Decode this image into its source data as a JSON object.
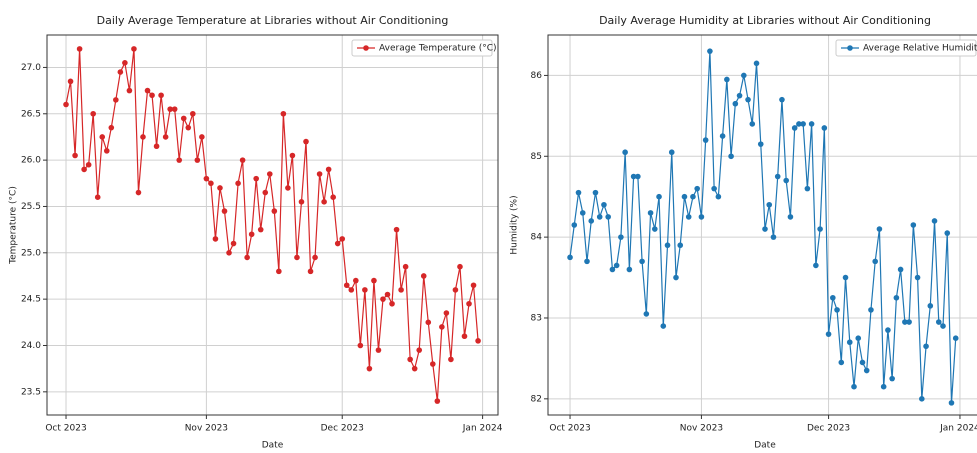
{
  "chart_data": [
    {
      "type": "line",
      "title": "Daily Average Temperature at Libraries without Air Conditioning",
      "xlabel": "Date",
      "ylabel": "Temperature (°C)",
      "x": [
        0,
        1,
        2,
        3,
        4,
        5,
        6,
        7,
        8,
        9,
        10,
        11,
        12,
        13,
        14,
        15,
        16,
        17,
        18,
        19,
        20,
        21,
        22,
        23,
        24,
        25,
        26,
        27,
        28,
        29,
        30,
        31,
        32,
        33,
        34,
        35,
        36,
        37,
        38,
        39,
        40,
        41,
        42,
        43,
        44,
        45,
        46,
        47,
        48,
        49,
        50,
        51,
        52,
        53,
        54,
        55,
        56,
        57,
        58,
        59,
        60,
        61,
        62,
        63,
        64,
        65,
        66,
        67,
        68,
        69,
        70,
        71,
        72,
        73,
        74,
        75,
        76,
        77,
        78,
        79,
        80,
        81,
        82,
        83,
        84,
        85,
        86,
        87,
        88,
        89,
        90,
        91
      ],
      "series": [
        {
          "name": "Average Temperature (°C)",
          "color": "#d62728",
          "values": [
            26.6,
            26.85,
            26.05,
            27.2,
            25.9,
            25.95,
            26.5,
            25.6,
            26.25,
            26.1,
            26.35,
            26.65,
            26.95,
            27.05,
            26.75,
            27.2,
            25.65,
            26.25,
            26.75,
            26.7,
            26.15,
            26.7,
            26.25,
            26.55,
            26.55,
            26.0,
            26.45,
            26.35,
            26.5,
            26.0,
            26.25,
            25.8,
            25.75,
            25.15,
            25.7,
            25.45,
            25.0,
            25.1,
            25.75,
            26.0,
            24.95,
            25.2,
            25.8,
            25.25,
            25.65,
            25.85,
            25.45,
            24.8,
            26.5,
            25.7,
            26.05,
            24.95,
            25.55,
            26.2,
            24.8,
            24.95,
            25.85,
            25.55,
            25.9,
            25.6,
            25.1,
            25.15,
            24.65,
            24.6,
            24.7,
            24.0,
            24.6,
            23.75,
            24.7,
            23.95,
            24.5,
            24.55,
            24.45,
            25.25,
            24.6,
            24.85,
            23.85,
            23.75,
            23.95,
            24.75,
            24.25,
            23.8,
            23.4,
            24.2,
            24.35,
            23.85,
            24.6,
            24.85,
            24.1,
            24.45,
            24.65,
            24.05
          ]
        }
      ],
      "xlim": [
        -4.2,
        95.4
      ],
      "xticks": [
        {
          "value": 0,
          "label": "Oct 2023"
        },
        {
          "value": 31,
          "label": "Nov 2023"
        },
        {
          "value": 61,
          "label": "Dec 2023"
        },
        {
          "value": 92,
          "label": "Jan 2024"
        }
      ],
      "ylim": [
        23.25,
        27.35
      ],
      "yticks": [
        23.5,
        {
          "value": 24,
          "label": "24.0"
        },
        24.5,
        {
          "value": 25,
          "label": "25.0"
        },
        25.5,
        {
          "value": 26,
          "label": "26.0"
        },
        26.5,
        {
          "value": 27,
          "label": "27.0"
        }
      ],
      "grid": true,
      "legend": "upper right"
    },
    {
      "type": "line",
      "title": "Daily Average Humidity at Libraries without Air Conditioning",
      "xlabel": "Date",
      "ylabel": "Humidity (%)",
      "x": [
        0,
        1,
        2,
        3,
        4,
        5,
        6,
        7,
        8,
        9,
        10,
        11,
        12,
        13,
        14,
        15,
        16,
        17,
        18,
        19,
        20,
        21,
        22,
        23,
        24,
        25,
        26,
        27,
        28,
        29,
        30,
        31,
        32,
        33,
        34,
        35,
        36,
        37,
        38,
        39,
        40,
        41,
        42,
        43,
        44,
        45,
        46,
        47,
        48,
        49,
        50,
        51,
        52,
        53,
        54,
        55,
        56,
        57,
        58,
        59,
        60,
        61,
        62,
        63,
        64,
        65,
        66,
        67,
        68,
        69,
        70,
        71,
        72,
        73,
        74,
        75,
        76,
        77,
        78,
        79,
        80,
        81,
        82,
        83,
        84,
        85,
        86,
        87,
        88,
        89,
        90,
        91
      ],
      "series": [
        {
          "name": "Average Relative Humidity (%)",
          "color": "#1f77b4",
          "values": [
            83.75,
            84.15,
            84.55,
            84.3,
            83.7,
            84.2,
            84.55,
            84.25,
            84.4,
            84.25,
            83.6,
            83.65,
            84.0,
            85.05,
            83.6,
            84.75,
            84.75,
            83.7,
            83.05,
            84.3,
            84.1,
            84.5,
            82.9,
            83.9,
            85.05,
            83.5,
            83.9,
            84.5,
            84.25,
            84.5,
            84.6,
            84.25,
            85.2,
            86.3,
            84.6,
            84.5,
            85.25,
            85.95,
            85.0,
            85.65,
            85.75,
            86.0,
            85.7,
            85.4,
            86.15,
            85.15,
            84.1,
            84.4,
            84.0,
            84.75,
            85.7,
            84.7,
            84.25,
            85.35,
            85.4,
            85.4,
            84.6,
            85.4,
            83.65,
            84.1,
            85.35,
            82.8,
            83.25,
            83.1,
            82.45,
            83.5,
            82.7,
            82.15,
            82.75,
            82.45,
            82.35,
            83.1,
            83.7,
            84.1,
            82.15,
            82.85,
            82.25,
            83.25,
            83.6,
            82.95,
            82.95,
            84.15,
            83.5,
            82.0,
            82.65,
            83.15,
            84.2,
            82.95,
            82.9,
            84.05,
            81.95,
            82.75
          ]
        }
      ],
      "xlim": [
        -5.2,
        97.2
      ],
      "xticks": [
        {
          "value": 0,
          "label": "Oct 2023"
        },
        {
          "value": 31,
          "label": "Nov 2023"
        },
        {
          "value": 61,
          "label": "Dec 2023"
        },
        {
          "value": 92,
          "label": "Jan 2024"
        }
      ],
      "ylim": [
        81.8,
        86.5
      ],
      "yticks": [
        82,
        83,
        84,
        85,
        86
      ],
      "grid": true,
      "legend": "upper right"
    }
  ]
}
